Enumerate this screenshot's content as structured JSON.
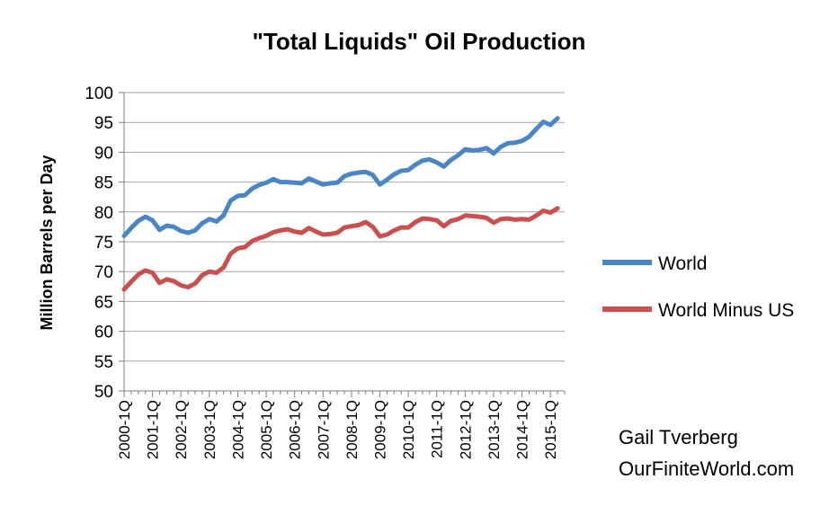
{
  "chart_data": {
    "type": "line",
    "title": "\"Total Liquids\" Oil Production",
    "ylabel": "Million Barrels per Day",
    "xlabel": "",
    "ylim": [
      50,
      100
    ],
    "yticks": [
      50,
      55,
      60,
      65,
      70,
      75,
      80,
      85,
      90,
      95,
      100
    ],
    "grid": true,
    "legend_position": "right",
    "x_tick_labels": [
      "2000-1Q",
      "2001-1Q",
      "2002-1Q",
      "2003-1Q",
      "2004-1Q",
      "2005-1Q",
      "2006-1Q",
      "2007-1Q",
      "2008-1Q",
      "2009-1Q",
      "2010-1Q",
      "2011-1Q",
      "2012-1Q",
      "2013-1Q",
      "2014-1Q",
      "2015-1Q"
    ],
    "series": [
      {
        "name": "World",
        "color": "#4a86c5",
        "values": [
          76.0,
          77.3,
          78.5,
          79.2,
          78.6,
          77.0,
          77.7,
          77.5,
          76.8,
          76.5,
          76.9,
          78.1,
          78.8,
          78.4,
          79.4,
          81.9,
          82.7,
          82.8,
          83.9,
          84.5,
          84.9,
          85.5,
          85.0,
          85.0,
          84.9,
          84.8,
          85.6,
          85.1,
          84.6,
          84.8,
          84.9,
          86.0,
          86.4,
          86.6,
          86.7,
          86.2,
          84.6,
          85.4,
          86.3,
          86.9,
          87.0,
          87.9,
          88.6,
          88.8,
          88.3,
          87.6,
          88.7,
          89.5,
          90.5,
          90.3,
          90.4,
          90.7,
          89.8,
          90.9,
          91.5,
          91.6,
          91.9,
          92.6,
          93.9,
          95.1,
          94.6,
          95.7
        ]
      },
      {
        "name": "World Minus US",
        "color": "#c9504e",
        "values": [
          67.0,
          68.3,
          69.5,
          70.2,
          69.8,
          68.1,
          68.7,
          68.4,
          67.7,
          67.4,
          68.0,
          69.4,
          70.0,
          69.8,
          70.7,
          73.0,
          73.9,
          74.1,
          75.1,
          75.6,
          76.0,
          76.6,
          76.9,
          77.1,
          76.7,
          76.5,
          77.3,
          76.7,
          76.2,
          76.3,
          76.5,
          77.4,
          77.6,
          77.8,
          78.3,
          77.5,
          75.9,
          76.2,
          76.9,
          77.4,
          77.4,
          78.3,
          78.9,
          78.8,
          78.6,
          77.6,
          78.5,
          78.8,
          79.4,
          79.3,
          79.2,
          79.0,
          78.2,
          78.8,
          78.9,
          78.7,
          78.8,
          78.7,
          79.4,
          80.2,
          79.9,
          80.6
        ]
      }
    ],
    "annotations": [
      "Gail Tverberg",
      "OurFiniteWorld.com"
    ]
  }
}
